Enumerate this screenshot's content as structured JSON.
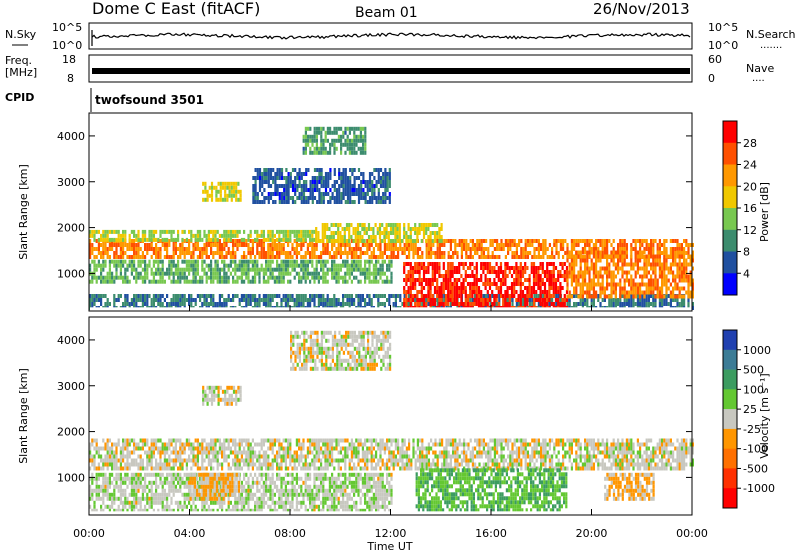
{
  "header": {
    "title": "Dome C East (fitACF)",
    "beam": "Beam 01",
    "date": "26/Nov/2013"
  },
  "nsky_panel": {
    "left_label": "N.Sky",
    "right_label": "N.Search",
    "right_legend_dots": ".......",
    "left_ticks": [
      "10^5",
      "10^0"
    ],
    "right_ticks": [
      "10^5",
      "10^0"
    ]
  },
  "freq_panel": {
    "left_label_line1": "Freq.",
    "left_label_line2": "[MHz]",
    "left_ticks": [
      "18",
      "8"
    ],
    "right_label": "Nave",
    "right_legend_dots": "....",
    "right_ticks": [
      "60",
      "0"
    ]
  },
  "cpid_panel": {
    "label": "CPID",
    "program": "twofsound 3501"
  },
  "power_colorbar": {
    "label": "Power [dB]",
    "ticks": [
      "28",
      "24",
      "20",
      "16",
      "12",
      "8",
      "4"
    ],
    "colors": [
      "#ff0000",
      "#ff5000",
      "#ff9800",
      "#f0c800",
      "#78c850",
      "#3c8c6e",
      "#2050a0",
      "#0000ff"
    ]
  },
  "velocity_colorbar": {
    "label": "Velocity [m s⁻¹]",
    "ticks": [
      "1000",
      "500",
      "100",
      "25",
      "-25",
      "-100",
      "-500",
      "-1000"
    ],
    "colors": [
      "#2040b0",
      "#3c7c96",
      "#3c9c60",
      "#64c832",
      "#c8c8c0",
      "#ff9600",
      "#ff7000",
      "#ff3000",
      "#ff0000"
    ]
  },
  "x_axis": {
    "label": "Time UT",
    "ticks": [
      "00:00",
      "04:00",
      "08:00",
      "12:00",
      "16:00",
      "20:00",
      "00:00"
    ]
  },
  "power_panel": {
    "ylabel": "Slant Range [km]",
    "yticks": [
      "4000",
      "3000",
      "2000",
      "1000"
    ]
  },
  "velocity_panel": {
    "ylabel": "Slant Range [km]",
    "yticks": [
      "4000",
      "3000",
      "2000",
      "1000"
    ]
  },
  "chart_data": [
    {
      "type": "heatmap",
      "title": "",
      "xlabel": "Time UT",
      "ylabel": "Slant Range [km]",
      "xlim": [
        0,
        24
      ],
      "ylim": [
        180,
        4500
      ],
      "colorbar": {
        "label": "Power [dB]",
        "range": [
          0,
          30
        ]
      },
      "regions": [
        {
          "t0": 0,
          "t1": 24,
          "r0": 1350,
          "r1": 1750,
          "value": 22
        },
        {
          "t0": 0,
          "t1": 9,
          "r0": 1750,
          "r1": 1950,
          "value": 14
        },
        {
          "t0": 9,
          "t1": 14,
          "r0": 1700,
          "r1": 2100,
          "value": 16
        },
        {
          "t0": 0,
          "t1": 12,
          "r0": 850,
          "r1": 1300,
          "value": 12
        },
        {
          "t0": 0,
          "t1": 24,
          "r0": 250,
          "r1": 550,
          "value": 8
        },
        {
          "t0": 12.5,
          "t1": 19,
          "r0": 250,
          "r1": 1250,
          "value": 27
        },
        {
          "t0": 19,
          "t1": 24,
          "r0": 500,
          "r1": 1500,
          "value": 22
        },
        {
          "t0": 4.5,
          "t1": 6,
          "r0": 2600,
          "r1": 3000,
          "value": 16
        },
        {
          "t0": 8.5,
          "t1": 11,
          "r0": 3600,
          "r1": 4200,
          "value": 10
        },
        {
          "t0": 6.5,
          "t1": 12,
          "r0": 2600,
          "r1": 3300,
          "value": 6
        }
      ]
    },
    {
      "type": "heatmap",
      "title": "",
      "xlabel": "Time UT",
      "ylabel": "Slant Range [km]",
      "xlim": [
        0,
        24
      ],
      "ylim": [
        180,
        4500
      ],
      "colorbar": {
        "label": "Velocity [m s⁻¹]",
        "range": [
          -1000,
          1000
        ]
      },
      "regions": [
        {
          "t0": 0,
          "t1": 24,
          "r0": 1200,
          "r1": 1850,
          "value": 0
        },
        {
          "t0": 0,
          "t1": 12,
          "r0": 300,
          "r1": 1100,
          "value": 60
        },
        {
          "t0": 4,
          "t1": 6,
          "r0": 500,
          "r1": 1100,
          "value": -150
        },
        {
          "t0": 13,
          "t1": 19,
          "r0": 300,
          "r1": 1200,
          "value": 300
        },
        {
          "t0": 20.5,
          "t1": 22.5,
          "r0": 500,
          "r1": 1100,
          "value": -150
        },
        {
          "t0": 8,
          "t1": 12,
          "r0": 3400,
          "r1": 4200,
          "value": 0
        },
        {
          "t0": 4.5,
          "t1": 6,
          "r0": 2600,
          "r1": 3000,
          "value": 0
        }
      ]
    }
  ]
}
